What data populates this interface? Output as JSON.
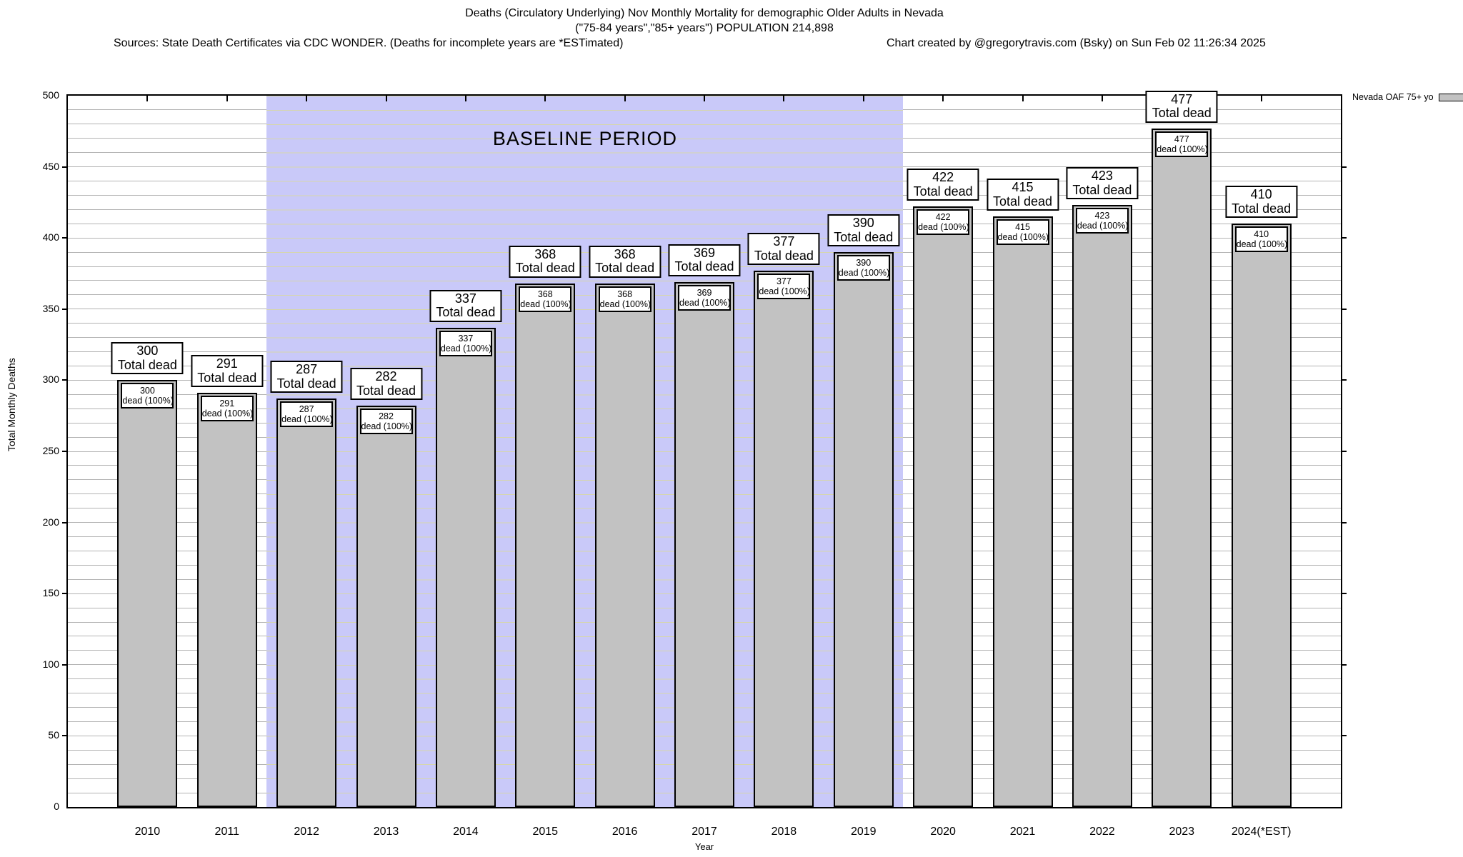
{
  "header": {
    "title_line1": "Deaths (Circulatory Underlying) Nov Monthly Mortality for demographic Older Adults in Nevada",
    "title_line2": "(\"75-84 years\",\"85+ years\") POPULATION 214,898",
    "sources_note": "Sources: State Death Certificates via CDC WONDER. (Deaths for incomplete years are *ESTimated)",
    "credit_note": "Chart created by @gregorytravis.com (Bsky) on Sun Feb 02 11:26:34 2025"
  },
  "legend": {
    "label": "Nevada OAF 75+ yo",
    "swatch_color": "#c2c2c2"
  },
  "labels": {
    "total_suffix": "Total dead",
    "inner_suffix": "dead (100%)"
  },
  "chart_data": {
    "type": "bar",
    "title": "Deaths (Circulatory Underlying) Nov Monthly Mortality for demographic Older Adults in Nevada",
    "subtitle": "(\"75-84 years\",\"85+ years\") POPULATION 214,898",
    "categories": [
      "2010",
      "2011",
      "2012",
      "2013",
      "2014",
      "2015",
      "2016",
      "2017",
      "2018",
      "2019",
      "2020",
      "2021",
      "2022",
      "2023",
      "2024(*EST)"
    ],
    "values": [
      300,
      291,
      287,
      282,
      337,
      368,
      368,
      369,
      377,
      390,
      422,
      415,
      423,
      477,
      410
    ],
    "series_name": "Nevada OAF 75+ yo",
    "xlabel": "Year",
    "ylabel": "Total Monthly Deaths",
    "ylim": [
      0,
      500
    ],
    "ytick_interval": 50,
    "minor_grid_interval": 10,
    "grid": true,
    "legend_position": "top-right-outside",
    "bar_color": "#c2c2c2",
    "grid_color": "#b3b3b3",
    "baseline_region": {
      "label": "BASELINE PERIOD",
      "start_category": "2012",
      "end_category": "2019",
      "fill_color": "#c9c9f9",
      "grid_color": "#d6d6ab"
    }
  }
}
